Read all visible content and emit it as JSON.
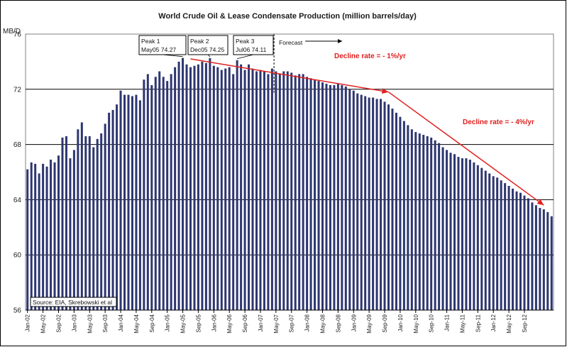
{
  "chart_data": {
    "type": "bar",
    "title": "World Crude Oil & Lease Condensate Production (million barrels/day)",
    "ylabel": "MB/D",
    "ylim": [
      56,
      76
    ],
    "yticks": [
      "56",
      "60",
      "64",
      "68",
      "72",
      "76"
    ],
    "grid": true,
    "start_month": "Jan-02",
    "xtick_labels": [
      "Jan-02",
      "May-02",
      "Sep-02",
      "Jan-03",
      "May-03",
      "Sep-03",
      "Jan-04",
      "May-04",
      "Sep-04",
      "Jan-05",
      "May-05",
      "Sep-05",
      "Jan-06",
      "May-06",
      "Sep-06",
      "Jan-07",
      "May-07",
      "Sep-07",
      "Jan-08",
      "May-08",
      "Sep-08",
      "Jan-09",
      "May-09",
      "Sep-09",
      "Jan-10",
      "May-10",
      "Sep-10",
      "Jan-11",
      "May-11",
      "Sep-11",
      "Jan-12",
      "May-12",
      "Sep-12"
    ],
    "values": [
      66.2,
      66.7,
      66.6,
      65.9,
      66.6,
      66.4,
      66.9,
      66.7,
      67.2,
      68.5,
      68.6,
      67.0,
      67.6,
      69.1,
      69.6,
      68.6,
      68.6,
      67.8,
      68.4,
      68.8,
      69.5,
      70.3,
      70.5,
      70.9,
      71.9,
      71.6,
      71.6,
      71.5,
      71.6,
      71.2,
      72.7,
      73.1,
      72.3,
      72.9,
      73.3,
      72.9,
      72.6,
      73.1,
      73.6,
      74.0,
      74.27,
      73.8,
      73.6,
      73.7,
      73.8,
      74.0,
      73.9,
      74.25,
      73.7,
      73.6,
      73.4,
      73.5,
      73.6,
      73.1,
      74.11,
      73.8,
      73.4,
      73.8,
      73.5,
      73.3,
      73.4,
      73.3,
      73.1,
      73.5,
      73.3,
      73.1,
      73.3,
      73.3,
      73.2,
      73.0,
      73.1,
      73.1,
      72.9,
      72.8,
      72.7,
      72.6,
      72.5,
      72.4,
      72.3,
      72.3,
      72.4,
      72.3,
      72.2,
      72.0,
      71.9,
      71.7,
      71.6,
      71.5,
      71.4,
      71.4,
      71.3,
      71.3,
      71.1,
      70.9,
      70.6,
      70.3,
      70.0,
      69.7,
      69.4,
      69.1,
      68.9,
      68.8,
      68.7,
      68.6,
      68.5,
      68.3,
      68.1,
      67.8,
      67.6,
      67.4,
      67.3,
      67.1,
      67.0,
      67.0,
      66.9,
      66.7,
      66.5,
      66.3,
      66.1,
      65.9,
      65.7,
      65.6,
      65.4,
      65.2,
      65.0,
      64.8,
      64.6,
      64.5,
      64.3,
      64.1,
      63.8,
      63.6,
      63.4,
      63.3,
      63.1,
      62.8
    ],
    "annotations": [
      {
        "label": "Peak 1",
        "detail": "May05 74.27"
      },
      {
        "label": "Peak 2",
        "detail": "Dec05 74.25"
      },
      {
        "label": "Peak 3",
        "detail": "Jul06 74.11"
      }
    ],
    "forecast_label": "Forecast",
    "decline_rates": [
      {
        "text": "Decline rate = - 1%/yr",
        "from_value": 74.2,
        "to_value": 71.8
      },
      {
        "text": "Decline rate = - 4%/yr",
        "from_value": 71.8,
        "to_value": 63.6
      }
    ],
    "source": "Source: EIA, Skrebowski et al",
    "colors": {
      "bar": "#2e3670",
      "plot_background": "#ffffff",
      "grid": "#000000",
      "arrow": "#e02020",
      "decline_text": "#e02020"
    }
  }
}
